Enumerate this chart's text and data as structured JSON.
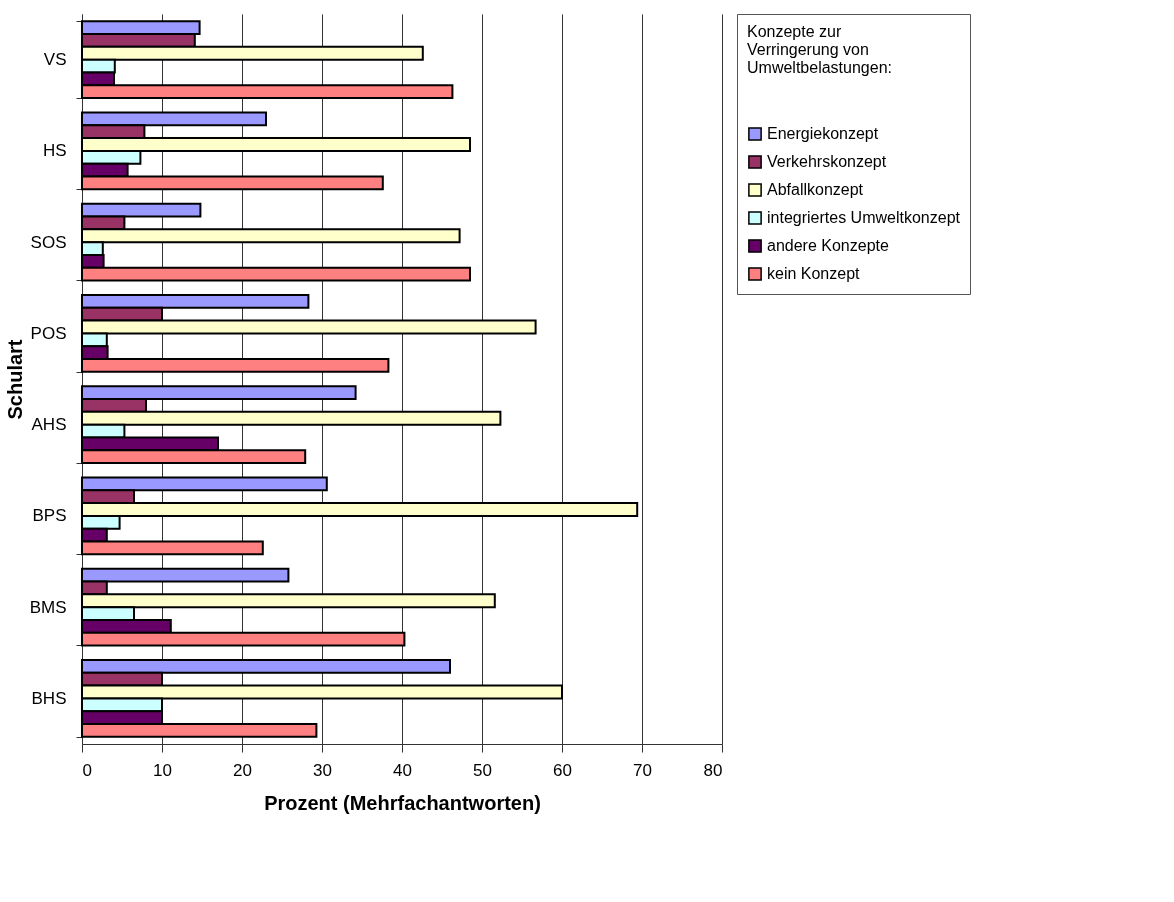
{
  "chart_data": {
    "type": "bar",
    "orientation": "horizontal",
    "xlabel": "Prozent (Mehrfachantworten)",
    "ylabel": "Schulart",
    "legend_title": "Konzepte zur Verringerung von Umweltbelastungen:",
    "categories": [
      "VS",
      "HS",
      "SOS",
      "POS",
      "AHS",
      "BPS",
      "BMS",
      "BHS"
    ],
    "series": [
      {
        "name": "Energiekonzept",
        "color": "#9999ff",
        "values": [
          14.7,
          23.0,
          14.8,
          28.3,
          34.2,
          30.6,
          25.8,
          46.0
        ]
      },
      {
        "name": "Verkehrskonzept",
        "color": "#993366",
        "values": [
          14.1,
          7.8,
          5.3,
          10.0,
          8.0,
          6.5,
          3.1,
          10.0
        ]
      },
      {
        "name": "Abfallkonzept",
        "color": "#ffffcc",
        "values": [
          42.6,
          48.5,
          47.2,
          56.7,
          52.3,
          69.4,
          51.6,
          60.0
        ]
      },
      {
        "name": "integriertes Umweltkonzept",
        "color": "#ccffff",
        "values": [
          4.1,
          7.3,
          2.6,
          3.1,
          5.3,
          4.7,
          6.5,
          10.0
        ]
      },
      {
        "name": "andere Konzepte",
        "color": "#660066",
        "values": [
          4.0,
          5.7,
          2.7,
          3.2,
          17.0,
          3.1,
          11.1,
          10.0
        ]
      },
      {
        "name": "kein Konzept",
        "color": "#ff8080",
        "values": [
          46.3,
          37.6,
          48.5,
          38.3,
          27.9,
          22.6,
          40.3,
          29.3
        ]
      }
    ],
    "xlim": [
      0,
      80
    ],
    "xticks": [
      0,
      10,
      20,
      30,
      40,
      50,
      60,
      70,
      80
    ],
    "grid": "x",
    "legend": "right"
  }
}
